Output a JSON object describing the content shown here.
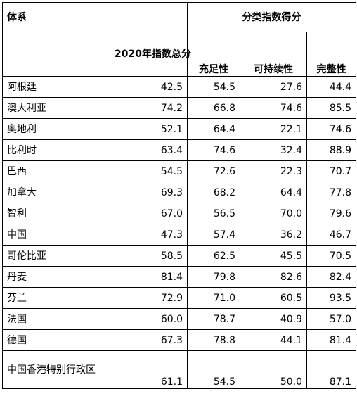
{
  "header": {
    "system_label": "体系",
    "group_label": "分类指数得分",
    "total_label": "2020年指数总分",
    "adequacy_label": "充足性",
    "sustainability_label": "可持续性",
    "integrity_label": "完整性"
  },
  "rows": [
    {
      "name": "阿根廷",
      "total": "42.5",
      "adequacy": "54.5",
      "sustainability": "27.6",
      "integrity": "44.4"
    },
    {
      "name": "澳大利亚",
      "total": "74.2",
      "adequacy": "66.8",
      "sustainability": "74.6",
      "integrity": "85.5"
    },
    {
      "name": "奥地利",
      "total": "52.1",
      "adequacy": "64.4",
      "sustainability": "22.1",
      "integrity": "74.6"
    },
    {
      "name": "比利时",
      "total": "63.4",
      "adequacy": "74.6",
      "sustainability": "32.4",
      "integrity": "88.9"
    },
    {
      "name": "巴西",
      "total": "54.5",
      "adequacy": "72.6",
      "sustainability": "22.3",
      "integrity": "70.7"
    },
    {
      "name": "加拿大",
      "total": "69.3",
      "adequacy": "68.2",
      "sustainability": "64.4",
      "integrity": "77.8"
    },
    {
      "name": "智利",
      "total": "67.0",
      "adequacy": "56.5",
      "sustainability": "70.0",
      "integrity": "79.6"
    },
    {
      "name": "中国",
      "total": "47.3",
      "adequacy": "57.4",
      "sustainability": "36.2",
      "integrity": "46.7"
    },
    {
      "name": "哥伦比亚",
      "total": "58.5",
      "adequacy": "62.5",
      "sustainability": "45.5",
      "integrity": "70.5"
    },
    {
      "name": "丹麦",
      "total": "81.4",
      "adequacy": "79.8",
      "sustainability": "82.6",
      "integrity": "82.4"
    },
    {
      "name": "芬兰",
      "total": "72.9",
      "adequacy": "71.0",
      "sustainability": "60.5",
      "integrity": "93.5"
    },
    {
      "name": "法国",
      "total": "60.0",
      "adequacy": "78.7",
      "sustainability": "40.9",
      "integrity": "57.0"
    },
    {
      "name": "德国",
      "total": "67.3",
      "adequacy": "78.8",
      "sustainability": "44.1",
      "integrity": "81.4"
    },
    {
      "name": "中国香港特别行政区",
      "total": "61.1",
      "adequacy": "54.5",
      "sustainability": "50.0",
      "integrity": "87.1"
    }
  ]
}
